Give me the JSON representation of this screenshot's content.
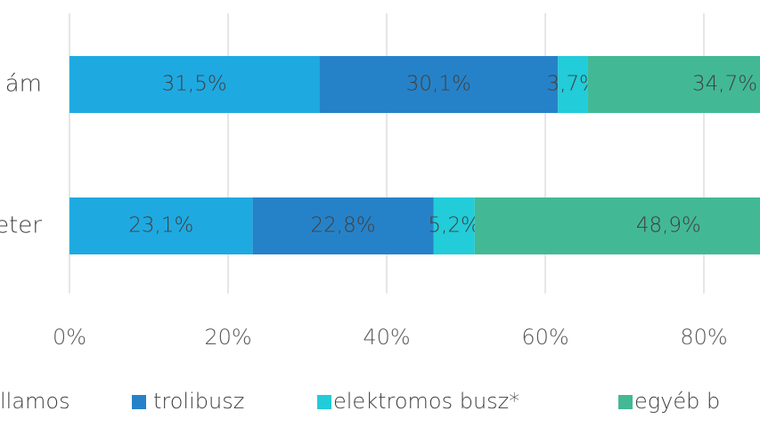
{
  "chart_data": {
    "type": "bar",
    "orientation": "horizontal",
    "stacked": true,
    "categories": [
      "ám",
      "eter"
    ],
    "series": [
      {
        "name": "llamos",
        "color": "#1fa9e1",
        "values": [
          31.5,
          23.1
        ],
        "value_labels": [
          "31,5%",
          "23,1%"
        ]
      },
      {
        "name": "trolibusz",
        "color": "#2682c8",
        "values": [
          30.1,
          22.8
        ],
        "value_labels": [
          "30,1%",
          "22,8%"
        ]
      },
      {
        "name": "elektromos busz*",
        "color": "#22ccd8",
        "values": [
          3.7,
          5.2
        ],
        "value_labels": [
          "3,7%",
          "5,2%"
        ]
      },
      {
        "name": "egyéb b",
        "color": "#42b994",
        "values": [
          34.7,
          48.9
        ],
        "value_labels": [
          "34,7%",
          "48,9%"
        ]
      }
    ],
    "xlim": [
      0,
      100
    ],
    "xticks": [
      {
        "value": 0,
        "label": "0%"
      },
      {
        "value": 20,
        "label": "20%"
      },
      {
        "value": 40,
        "label": "40%"
      },
      {
        "value": 60,
        "label": "60%"
      },
      {
        "value": 80,
        "label": "80%"
      }
    ],
    "grid": true
  }
}
